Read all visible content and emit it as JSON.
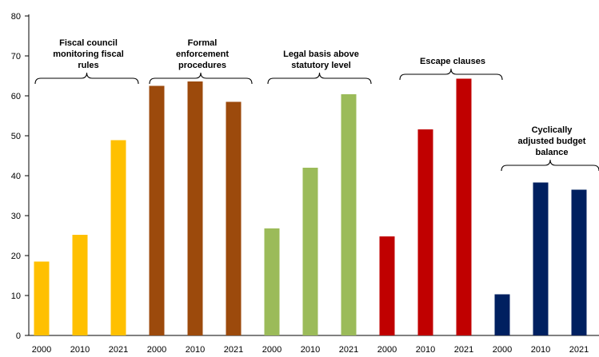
{
  "chart_data": {
    "type": "bar",
    "title": "",
    "xlabel": "",
    "ylabel": "",
    "ylim": [
      0,
      80
    ],
    "yticks": [
      0,
      10,
      20,
      30,
      40,
      50,
      60,
      70,
      80
    ],
    "grid": false,
    "legend": "none",
    "groups": [
      {
        "label_lines": [
          "Fiscal council",
          "monitoring fiscal",
          "rules"
        ],
        "color": "#FFC000",
        "categories": [
          "2000",
          "2010",
          "2021"
        ],
        "values": [
          18.5,
          25.2,
          48.9
        ]
      },
      {
        "label_lines": [
          "Formal",
          "enforcement",
          "procedures"
        ],
        "color": "#9C4A0C",
        "categories": [
          "2000",
          "2010",
          "2021"
        ],
        "values": [
          62.5,
          63.6,
          58.5
        ]
      },
      {
        "label_lines": [
          "Legal basis above",
          "statutory level"
        ],
        "color": "#9BBB59",
        "categories": [
          "2000",
          "2010",
          "2021"
        ],
        "values": [
          26.8,
          42.0,
          60.4
        ]
      },
      {
        "label_lines": [
          "Escape clauses"
        ],
        "color": "#C00000",
        "categories": [
          "2000",
          "2010",
          "2021"
        ],
        "values": [
          24.8,
          51.6,
          64.3
        ]
      },
      {
        "label_lines": [
          "Cyclically",
          "adjusted budget",
          "balance"
        ],
        "color": "#002060",
        "categories": [
          "2000",
          "2010",
          "2021"
        ],
        "values": [
          10.3,
          38.3,
          36.5
        ]
      }
    ]
  }
}
